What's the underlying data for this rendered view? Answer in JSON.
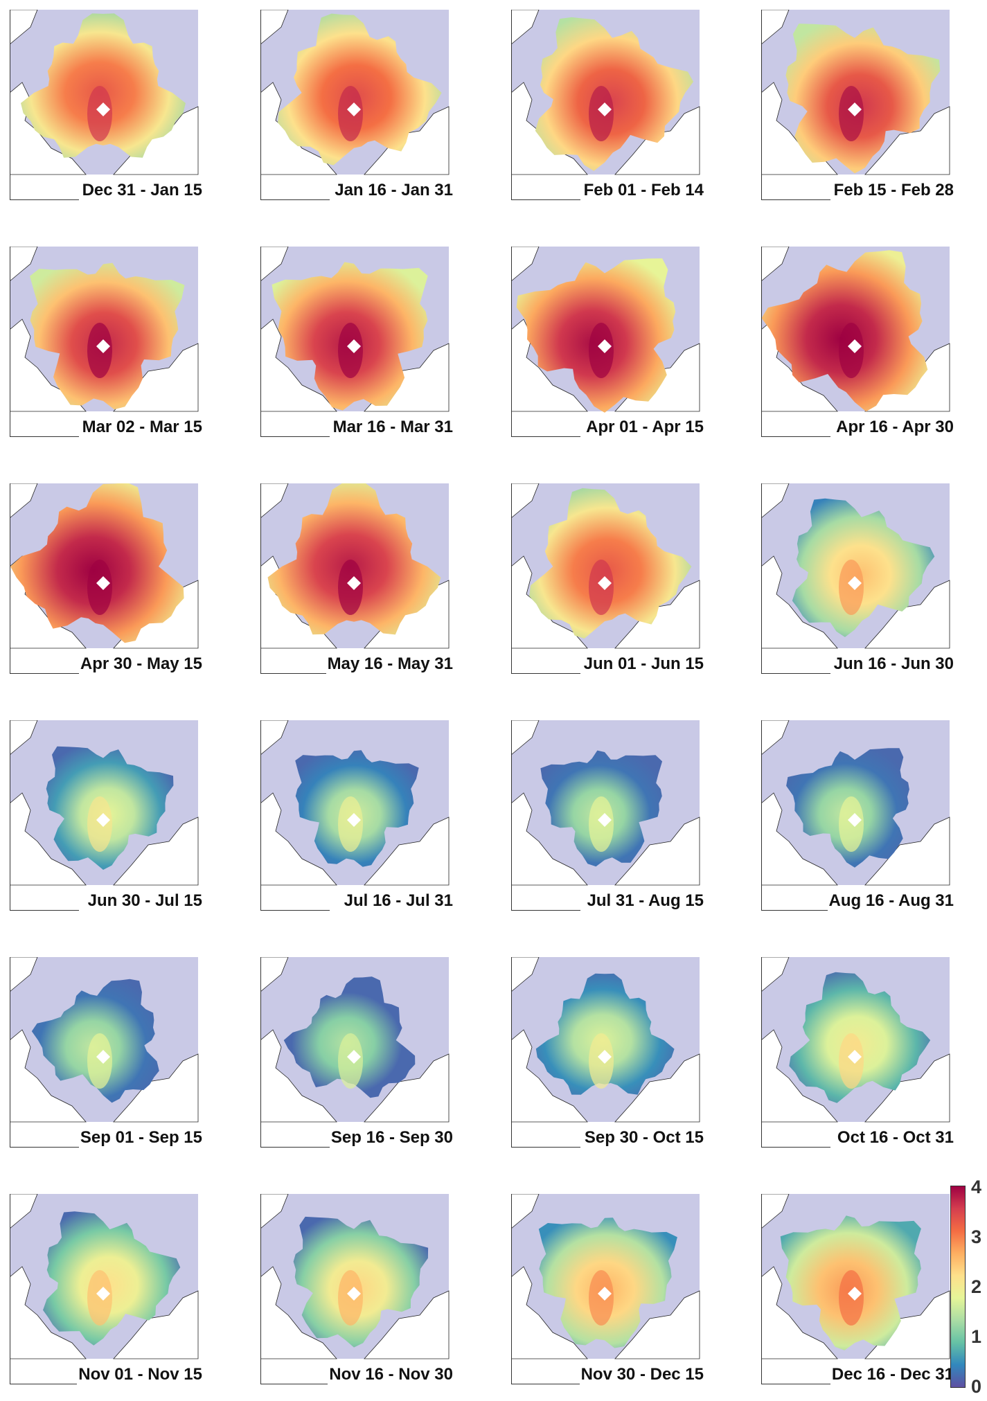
{
  "panels": [
    {
      "label": "Dec 31 - Jan 15",
      "level": 3.0
    },
    {
      "label": "Jan 16 - Jan 31",
      "level": 3.1
    },
    {
      "label": "Feb 01 - Feb 14",
      "level": 3.2
    },
    {
      "label": "Feb 15 - Feb 28",
      "level": 3.3
    },
    {
      "label": "Mar 02 - Mar 15",
      "level": 3.4
    },
    {
      "label": "Mar 16 - Mar 31",
      "level": 3.5
    },
    {
      "label": "Apr 01 - Apr 15",
      "level": 3.6
    },
    {
      "label": "Apr 16 - Apr 30",
      "level": 3.7
    },
    {
      "label": "Apr 30 - May 15",
      "level": 3.7
    },
    {
      "label": "May 16 - May 31",
      "level": 3.5
    },
    {
      "label": "Jun 01 - Jun 15",
      "level": 3.0
    },
    {
      "label": "Jun 16 - Jun 30",
      "level": 2.2
    },
    {
      "label": "Jun 30 - Jul 15",
      "level": 1.5
    },
    {
      "label": "Jul 16 - Jul 31",
      "level": 1.3
    },
    {
      "label": "Jul 31 - Aug 15",
      "level": 1.2
    },
    {
      "label": "Aug 16 - Aug 31",
      "level": 1.2
    },
    {
      "label": "Sep 01 - Sep 15",
      "level": 1.2
    },
    {
      "label": "Sep 16 - Sep 30",
      "level": 1.1
    },
    {
      "label": "Sep 30 - Oct 15",
      "level": 1.4
    },
    {
      "label": "Oct 16 - Oct 31",
      "level": 1.7
    },
    {
      "label": "Nov 01 - Nov 15",
      "level": 1.9
    },
    {
      "label": "Nov 16 - Nov 30",
      "level": 2.0
    },
    {
      "label": "Nov 30 - Dec 15",
      "level": 2.3
    },
    {
      "label": "Dec 16 - Dec 31",
      "level": 2.5
    }
  ],
  "colorbar": {
    "ticks": [
      "4",
      "3",
      "2",
      "1",
      "0"
    ],
    "min": 0,
    "max": 4,
    "colors": [
      "#5e4fa2",
      "#3288bd",
      "#66c2a5",
      "#abdda4",
      "#e6f598",
      "#fee08b",
      "#fdae61",
      "#f46d43",
      "#d53e4f",
      "#9e0142"
    ]
  },
  "colors": {
    "ocean": "#c9c9e6",
    "land": "#ffffff",
    "pole": "#ffffff",
    "nodata": "#cccccc"
  }
}
